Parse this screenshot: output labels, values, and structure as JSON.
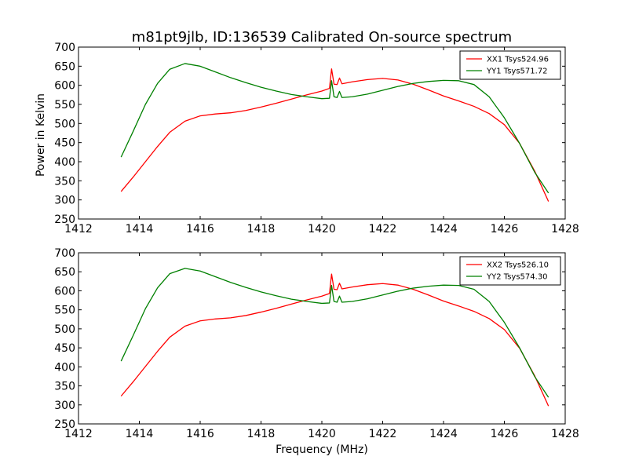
{
  "chart_data": [
    {
      "type": "line",
      "title": "m81pt9jlb, ID:136539 Calibrated On-source spectrum",
      "xlabel": "",
      "ylabel": "Power in Kelvin",
      "xlim": [
        1412,
        1428
      ],
      "ylim": [
        250,
        700
      ],
      "xticks": [
        1412,
        1414,
        1416,
        1418,
        1420,
        1422,
        1424,
        1426,
        1428
      ],
      "yticks": [
        250,
        300,
        350,
        400,
        450,
        500,
        550,
        600,
        650,
        700
      ],
      "grid": false,
      "legend_position": "top-right",
      "series": [
        {
          "name": "XX1 Tsys524.96",
          "color": "#ff0000",
          "points": [
            [
              1413.4,
              322
            ],
            [
              1413.8,
              360
            ],
            [
              1414.2,
              400
            ],
            [
              1414.6,
              440
            ],
            [
              1415.0,
              477
            ],
            [
              1415.5,
              506
            ],
            [
              1416.0,
              520
            ],
            [
              1416.5,
              525
            ],
            [
              1417.0,
              528
            ],
            [
              1417.5,
              534
            ],
            [
              1418.0,
              543
            ],
            [
              1418.5,
              553
            ],
            [
              1419.0,
              564
            ],
            [
              1419.5,
              575
            ],
            [
              1420.0,
              585
            ],
            [
              1420.25,
              592
            ],
            [
              1420.32,
              643
            ],
            [
              1420.4,
              603
            ],
            [
              1420.5,
              602
            ],
            [
              1420.58,
              619
            ],
            [
              1420.66,
              604
            ],
            [
              1421.0,
              609
            ],
            [
              1421.5,
              615
            ],
            [
              1422.0,
              618
            ],
            [
              1422.5,
              614
            ],
            [
              1423.0,
              603
            ],
            [
              1423.5,
              588
            ],
            [
              1424.0,
              572
            ],
            [
              1424.5,
              559
            ],
            [
              1425.0,
              545
            ],
            [
              1425.5,
              526
            ],
            [
              1426.0,
              497
            ],
            [
              1426.5,
              448
            ],
            [
              1427.0,
              375
            ],
            [
              1427.45,
              296
            ]
          ]
        },
        {
          "name": "YY1 Tsys571.72",
          "color": "#008000",
          "points": [
            [
              1413.4,
              412
            ],
            [
              1413.8,
              480
            ],
            [
              1414.2,
              550
            ],
            [
              1414.6,
              605
            ],
            [
              1415.0,
              642
            ],
            [
              1415.5,
              657
            ],
            [
              1416.0,
              650
            ],
            [
              1416.5,
              635
            ],
            [
              1417.0,
              620
            ],
            [
              1417.5,
              607
            ],
            [
              1418.0,
              595
            ],
            [
              1418.5,
              585
            ],
            [
              1419.0,
              576
            ],
            [
              1419.5,
              570
            ],
            [
              1420.0,
              565
            ],
            [
              1420.25,
              566
            ],
            [
              1420.32,
              612
            ],
            [
              1420.4,
              570
            ],
            [
              1420.5,
              568
            ],
            [
              1420.58,
              584
            ],
            [
              1420.66,
              568
            ],
            [
              1421.0,
              570
            ],
            [
              1421.5,
              577
            ],
            [
              1422.0,
              587
            ],
            [
              1422.5,
              597
            ],
            [
              1423.0,
              605
            ],
            [
              1423.5,
              610
            ],
            [
              1424.0,
              613
            ],
            [
              1424.5,
              612
            ],
            [
              1425.0,
              602
            ],
            [
              1425.5,
              570
            ],
            [
              1426.0,
              515
            ],
            [
              1426.5,
              448
            ],
            [
              1427.0,
              372
            ],
            [
              1427.45,
              318
            ]
          ]
        }
      ]
    },
    {
      "type": "line",
      "title": "",
      "xlabel": "Frequency (MHz)",
      "ylabel": "",
      "xlim": [
        1412,
        1428
      ],
      "ylim": [
        250,
        700
      ],
      "xticks": [
        1412,
        1414,
        1416,
        1418,
        1420,
        1422,
        1424,
        1426,
        1428
      ],
      "yticks": [
        250,
        300,
        350,
        400,
        450,
        500,
        550,
        600,
        650,
        700
      ],
      "grid": false,
      "legend_position": "top-right",
      "series": [
        {
          "name": "XX2 Tsys526.10",
          "color": "#ff0000",
          "points": [
            [
              1413.4,
              323
            ],
            [
              1413.8,
              361
            ],
            [
              1414.2,
              401
            ],
            [
              1414.6,
              441
            ],
            [
              1415.0,
              478
            ],
            [
              1415.5,
              507
            ],
            [
              1416.0,
              521
            ],
            [
              1416.5,
              526
            ],
            [
              1417.0,
              529
            ],
            [
              1417.5,
              535
            ],
            [
              1418.0,
              544
            ],
            [
              1418.5,
              554
            ],
            [
              1419.0,
              565
            ],
            [
              1419.5,
              576
            ],
            [
              1420.0,
              586
            ],
            [
              1420.25,
              593
            ],
            [
              1420.32,
              644
            ],
            [
              1420.4,
              604
            ],
            [
              1420.5,
              603
            ],
            [
              1420.58,
              620
            ],
            [
              1420.66,
              605
            ],
            [
              1421.0,
              610
            ],
            [
              1421.5,
              616
            ],
            [
              1422.0,
              619
            ],
            [
              1422.5,
              615
            ],
            [
              1423.0,
              604
            ],
            [
              1423.5,
              589
            ],
            [
              1424.0,
              573
            ],
            [
              1424.5,
              560
            ],
            [
              1425.0,
              546
            ],
            [
              1425.5,
              527
            ],
            [
              1426.0,
              498
            ],
            [
              1426.5,
              449
            ],
            [
              1427.0,
              376
            ],
            [
              1427.45,
              297
            ]
          ]
        },
        {
          "name": "YY2 Tsys574.30",
          "color": "#008000",
          "points": [
            [
              1413.4,
              415
            ],
            [
              1413.8,
              483
            ],
            [
              1414.2,
              553
            ],
            [
              1414.6,
              608
            ],
            [
              1415.0,
              645
            ],
            [
              1415.5,
              659
            ],
            [
              1416.0,
              652
            ],
            [
              1416.5,
              637
            ],
            [
              1417.0,
              622
            ],
            [
              1417.5,
              609
            ],
            [
              1418.0,
              597
            ],
            [
              1418.5,
              587
            ],
            [
              1419.0,
              578
            ],
            [
              1419.5,
              572
            ],
            [
              1420.0,
              567
            ],
            [
              1420.25,
              568
            ],
            [
              1420.32,
              614
            ],
            [
              1420.4,
              572
            ],
            [
              1420.5,
              570
            ],
            [
              1420.58,
              586
            ],
            [
              1420.66,
              570
            ],
            [
              1421.0,
              572
            ],
            [
              1421.5,
              579
            ],
            [
              1422.0,
              589
            ],
            [
              1422.5,
              599
            ],
            [
              1423.0,
              607
            ],
            [
              1423.5,
              612
            ],
            [
              1424.0,
              615
            ],
            [
              1424.5,
              614
            ],
            [
              1425.0,
              604
            ],
            [
              1425.5,
              572
            ],
            [
              1426.0,
              517
            ],
            [
              1426.5,
              450
            ],
            [
              1427.0,
              374
            ],
            [
              1427.45,
              320
            ]
          ]
        }
      ]
    }
  ]
}
